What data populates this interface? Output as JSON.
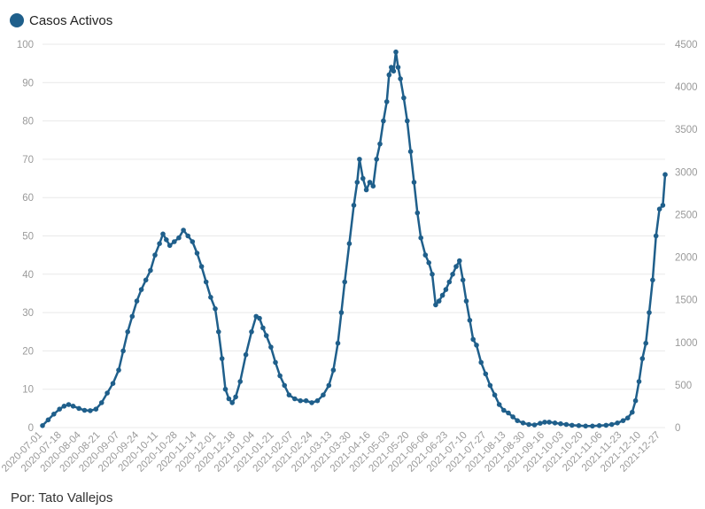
{
  "legend": {
    "label": "Casos Activos",
    "color": "#1f5f8b"
  },
  "credit": "Por: Tato Vallejos",
  "chart_data": {
    "type": "line",
    "series": [
      {
        "name": "Casos Activos",
        "color": "#1f5f8b"
      }
    ],
    "ylim_left": [
      0,
      100
    ],
    "ylim_right": [
      0,
      4500
    ],
    "yticks_left": [
      0,
      10,
      20,
      30,
      40,
      50,
      60,
      70,
      80,
      90,
      100
    ],
    "yticks_right": [
      0,
      500,
      1000,
      1500,
      2000,
      2500,
      3000,
      3500,
      4000,
      4500
    ],
    "grid": true,
    "legend_position": "top-left",
    "xticks": [
      "2020-07-01",
      "2020-07-18",
      "2020-08-04",
      "2020-08-21",
      "2020-09-07",
      "2020-09-24",
      "2020-10-11",
      "2020-10-28",
      "2020-11-14",
      "2020-12-01",
      "2020-12-18",
      "2021-01-04",
      "2021-01-21",
      "2021-02-07",
      "2021-02-24",
      "2021-03-13",
      "2021-03-30",
      "2021-04-16",
      "2021-05-03",
      "2021-05-20",
      "2021-06-06",
      "2021-06-23",
      "2021-07-10",
      "2021-07-27",
      "2021-08-13",
      "2021-08-30",
      "2021-09-16",
      "2021-10-03",
      "2021-10-20",
      "2021-11-06",
      "2021-11-23",
      "2021-12-10",
      "2021-12-27"
    ],
    "points": [
      [
        "2020-07-01",
        0.5
      ],
      [
        "2020-07-06",
        2.0
      ],
      [
        "2020-07-11",
        3.5
      ],
      [
        "2020-07-16",
        4.8
      ],
      [
        "2020-07-20",
        5.6
      ],
      [
        "2020-07-24",
        6.0
      ],
      [
        "2020-07-28",
        5.6
      ],
      [
        "2020-08-02",
        5.0
      ],
      [
        "2020-08-07",
        4.5
      ],
      [
        "2020-08-12",
        4.4
      ],
      [
        "2020-08-17",
        4.8
      ],
      [
        "2020-08-22",
        6.5
      ],
      [
        "2020-08-27",
        9.0
      ],
      [
        "2020-09-01",
        11.5
      ],
      [
        "2020-09-06",
        15.0
      ],
      [
        "2020-09-10",
        20.0
      ],
      [
        "2020-09-14",
        25.0
      ],
      [
        "2020-09-18",
        29.0
      ],
      [
        "2020-09-22",
        33.0
      ],
      [
        "2020-09-26",
        36.0
      ],
      [
        "2020-09-30",
        38.5
      ],
      [
        "2020-10-04",
        41.0
      ],
      [
        "2020-10-08",
        45.0
      ],
      [
        "2020-10-12",
        48.0
      ],
      [
        "2020-10-15",
        50.5
      ],
      [
        "2020-10-18",
        49.0
      ],
      [
        "2020-10-21",
        47.5
      ],
      [
        "2020-10-25",
        48.5
      ],
      [
        "2020-10-29",
        49.5
      ],
      [
        "2020-11-02",
        51.5
      ],
      [
        "2020-11-06",
        50.0
      ],
      [
        "2020-11-10",
        48.5
      ],
      [
        "2020-11-14",
        45.5
      ],
      [
        "2020-11-18",
        42.0
      ],
      [
        "2020-11-22",
        38.0
      ],
      [
        "2020-11-26",
        34.0
      ],
      [
        "2020-11-30",
        31.0
      ],
      [
        "2020-12-03",
        25.0
      ],
      [
        "2020-12-06",
        18.0
      ],
      [
        "2020-12-09",
        10.0
      ],
      [
        "2020-12-12",
        7.5
      ],
      [
        "2020-12-15",
        6.5
      ],
      [
        "2020-12-18",
        8.0
      ],
      [
        "2020-12-22",
        12.0
      ],
      [
        "2020-12-27",
        19.0
      ],
      [
        "2021-01-01",
        25.0
      ],
      [
        "2021-01-05",
        29.0
      ],
      [
        "2021-01-08",
        28.5
      ],
      [
        "2021-01-11",
        26.0
      ],
      [
        "2021-01-14",
        24.0
      ],
      [
        "2021-01-18",
        21.0
      ],
      [
        "2021-01-22",
        17.0
      ],
      [
        "2021-01-26",
        13.5
      ],
      [
        "2021-01-30",
        11.0
      ],
      [
        "2021-02-03",
        8.5
      ],
      [
        "2021-02-08",
        7.5
      ],
      [
        "2021-02-13",
        7.0
      ],
      [
        "2021-02-18",
        7.0
      ],
      [
        "2021-02-23",
        6.5
      ],
      [
        "2021-02-28",
        7.0
      ],
      [
        "2021-03-05",
        8.5
      ],
      [
        "2021-03-10",
        11.0
      ],
      [
        "2021-03-14",
        15.0
      ],
      [
        "2021-03-18",
        22.0
      ],
      [
        "2021-03-21",
        30.0
      ],
      [
        "2021-03-24",
        38.0
      ],
      [
        "2021-03-28",
        48.0
      ],
      [
        "2021-04-01",
        58.0
      ],
      [
        "2021-04-04",
        64.0
      ],
      [
        "2021-04-06",
        70.0
      ],
      [
        "2021-04-09",
        65.0
      ],
      [
        "2021-04-12",
        62.0
      ],
      [
        "2021-04-15",
        64.0
      ],
      [
        "2021-04-18",
        63.0
      ],
      [
        "2021-04-21",
        70.0
      ],
      [
        "2021-04-24",
        74.0
      ],
      [
        "2021-04-27",
        80.0
      ],
      [
        "2021-04-30",
        85.0
      ],
      [
        "2021-05-02",
        92.0
      ],
      [
        "2021-05-04",
        94.0
      ],
      [
        "2021-05-06",
        93.0
      ],
      [
        "2021-05-08",
        98.0
      ],
      [
        "2021-05-10",
        94.0
      ],
      [
        "2021-05-12",
        91.0
      ],
      [
        "2021-05-15",
        86.0
      ],
      [
        "2021-05-18",
        80.0
      ],
      [
        "2021-05-21",
        72.0
      ],
      [
        "2021-05-24",
        64.0
      ],
      [
        "2021-05-27",
        56.0
      ],
      [
        "2021-05-30",
        49.5
      ],
      [
        "2021-06-03",
        45.0
      ],
      [
        "2021-06-06",
        43.0
      ],
      [
        "2021-06-09",
        40.0
      ],
      [
        "2021-06-12",
        32.0
      ],
      [
        "2021-06-15",
        33.0
      ],
      [
        "2021-06-18",
        34.5
      ],
      [
        "2021-06-21",
        36.0
      ],
      [
        "2021-06-24",
        38.0
      ],
      [
        "2021-06-27",
        40.0
      ],
      [
        "2021-06-30",
        42.0
      ],
      [
        "2021-07-03",
        43.5
      ],
      [
        "2021-07-06",
        38.5
      ],
      [
        "2021-07-09",
        33.0
      ],
      [
        "2021-07-12",
        28.0
      ],
      [
        "2021-07-15",
        23.0
      ],
      [
        "2021-07-18",
        21.5
      ],
      [
        "2021-07-22",
        17.0
      ],
      [
        "2021-07-26",
        14.0
      ],
      [
        "2021-07-30",
        11.0
      ],
      [
        "2021-08-03",
        8.5
      ],
      [
        "2021-08-07",
        6.0
      ],
      [
        "2021-08-11",
        4.5
      ],
      [
        "2021-08-15",
        3.8
      ],
      [
        "2021-08-19",
        2.8
      ],
      [
        "2021-08-23",
        1.8
      ],
      [
        "2021-08-28",
        1.2
      ],
      [
        "2021-09-02",
        0.8
      ],
      [
        "2021-09-07",
        0.7
      ],
      [
        "2021-09-12",
        1.1
      ],
      [
        "2021-09-16",
        1.4
      ],
      [
        "2021-09-20",
        1.4
      ],
      [
        "2021-09-25",
        1.2
      ],
      [
        "2021-09-30",
        1.0
      ],
      [
        "2021-10-05",
        0.8
      ],
      [
        "2021-10-10",
        0.6
      ],
      [
        "2021-10-16",
        0.5
      ],
      [
        "2021-10-22",
        0.4
      ],
      [
        "2021-10-28",
        0.4
      ],
      [
        "2021-11-03",
        0.5
      ],
      [
        "2021-11-09",
        0.6
      ],
      [
        "2021-11-14",
        0.8
      ],
      [
        "2021-11-19",
        1.2
      ],
      [
        "2021-11-24",
        1.8
      ],
      [
        "2021-11-28",
        2.5
      ],
      [
        "2021-12-02",
        4.0
      ],
      [
        "2021-12-05",
        7.0
      ],
      [
        "2021-12-08",
        12.0
      ],
      [
        "2021-12-11",
        18.0
      ],
      [
        "2021-12-14",
        22.0
      ],
      [
        "2021-12-17",
        30.0
      ],
      [
        "2021-12-20",
        38.5
      ],
      [
        "2021-12-23",
        50.0
      ],
      [
        "2021-12-26",
        57.0
      ],
      [
        "2021-12-29",
        58.0
      ],
      [
        "2021-12-31",
        66.0
      ]
    ]
  }
}
